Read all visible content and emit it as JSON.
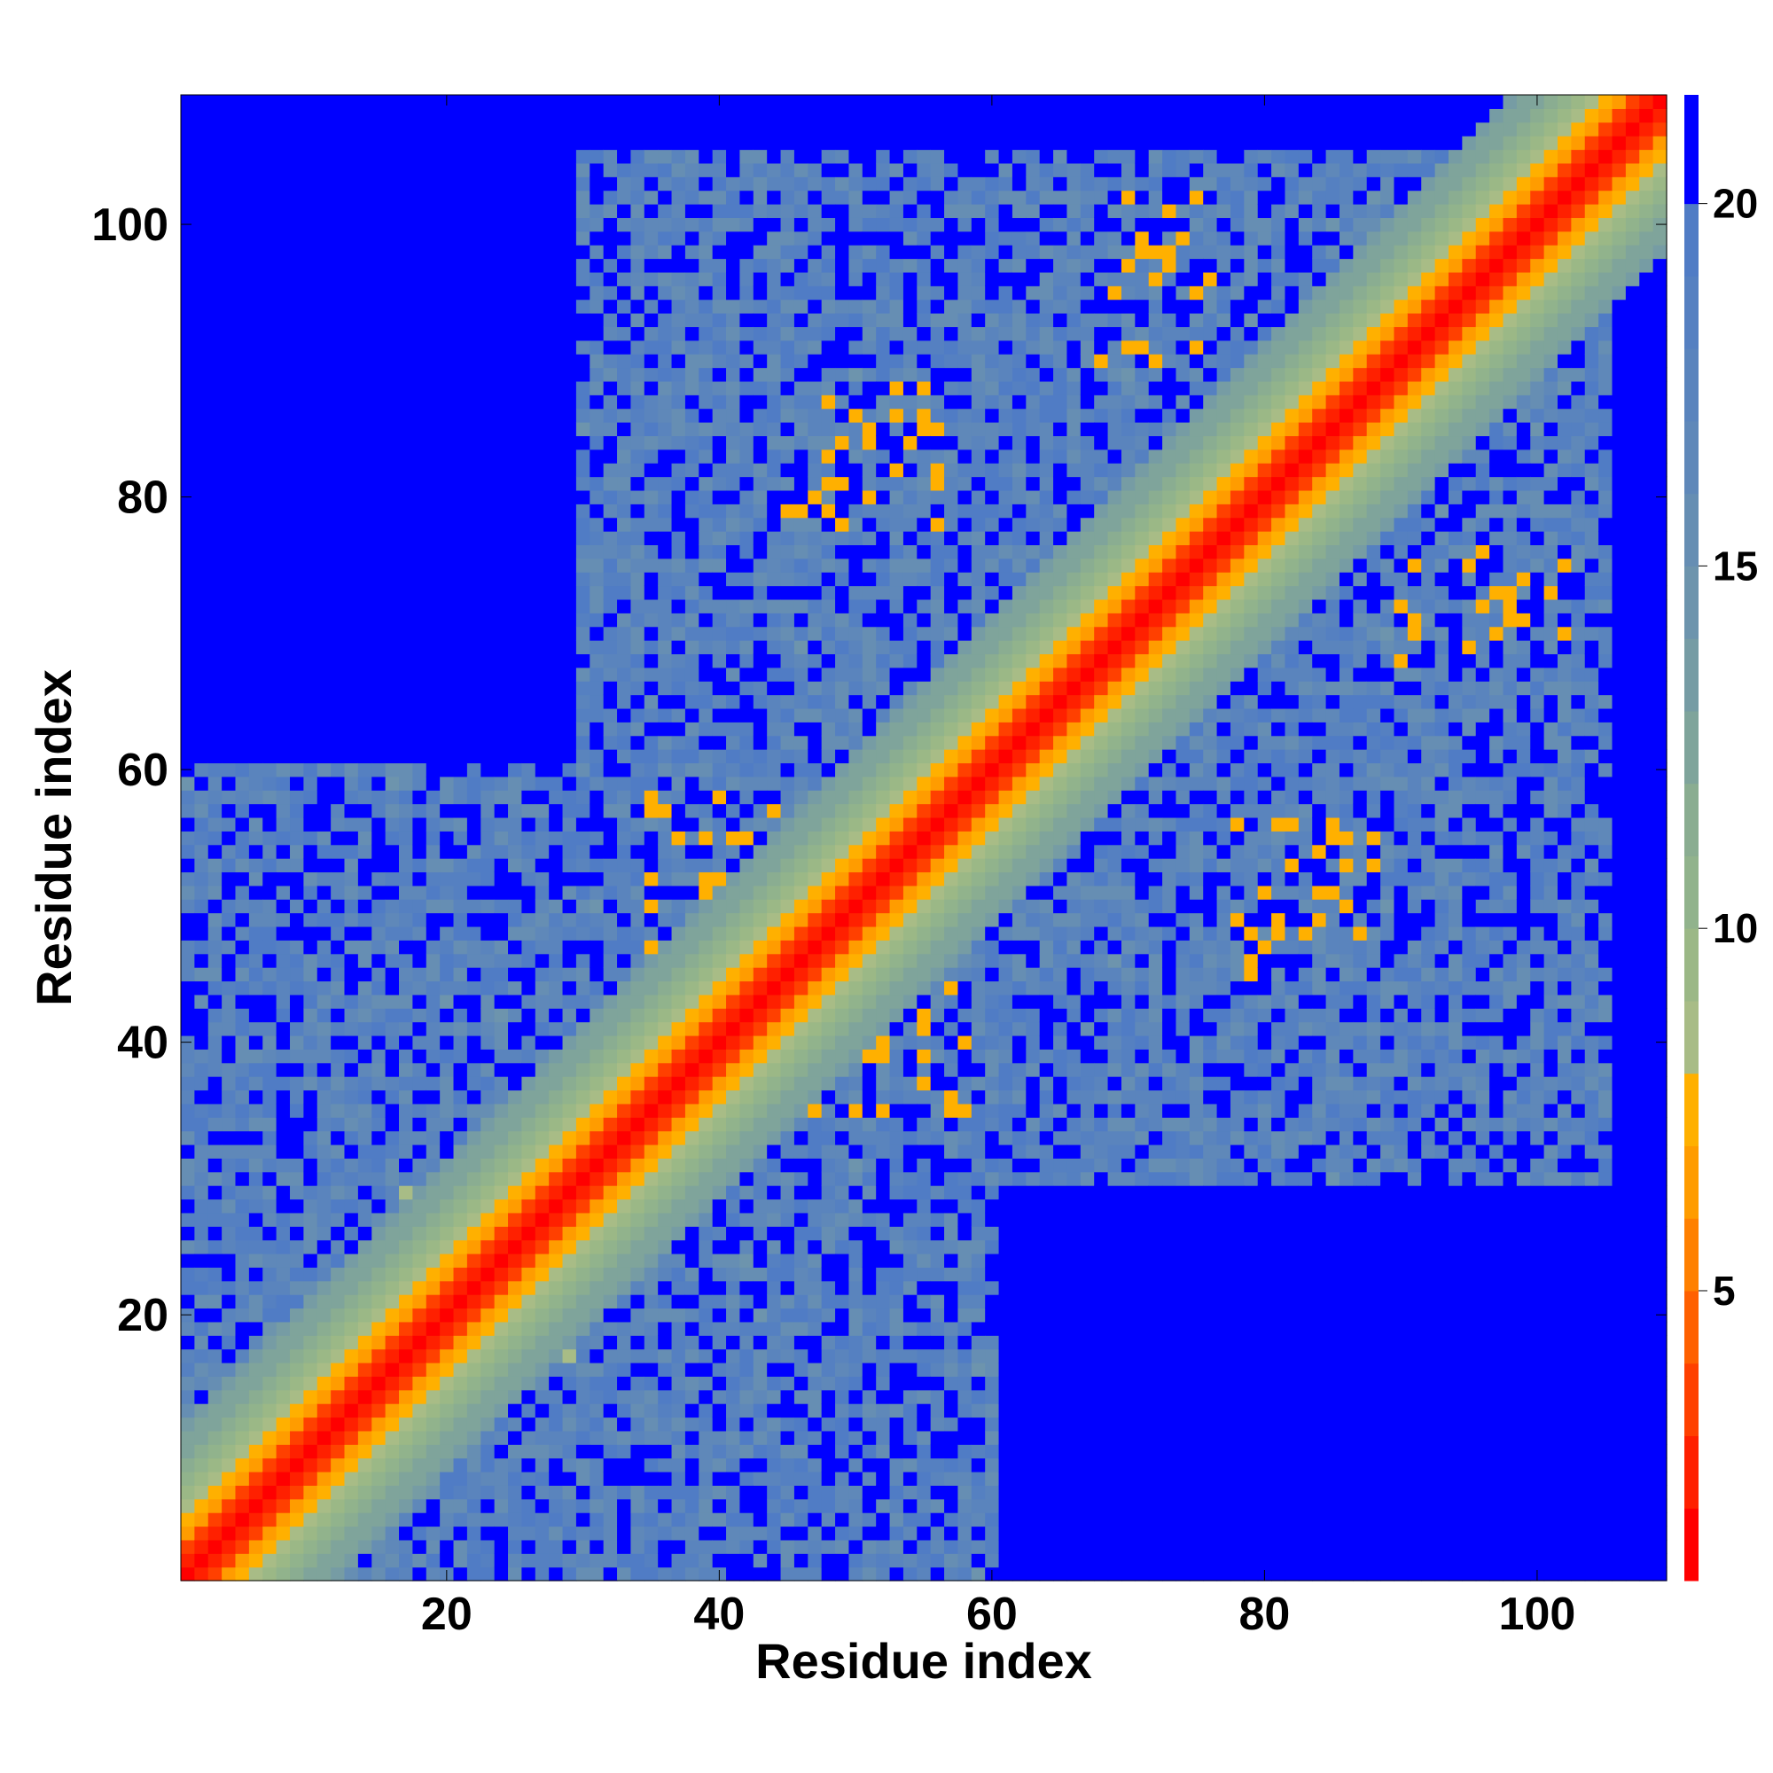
{
  "chart_data": {
    "type": "heatmap",
    "title": "",
    "xlabel": "Residue index",
    "ylabel": "Residue index",
    "xlim": [
      1,
      109
    ],
    "ylim": [
      1,
      109
    ],
    "n_residues": 109,
    "x_ticks": [
      20,
      40,
      60,
      80,
      100
    ],
    "y_ticks": [
      20,
      40,
      60,
      80,
      100
    ],
    "colorbar": {
      "range": [
        1,
        21.5
      ],
      "ticks": [
        5,
        10,
        15,
        20
      ],
      "levels": [
        {
          "max": 2,
          "color": "#ff0000"
        },
        {
          "max": 3,
          "color": "#ff2000"
        },
        {
          "max": 4,
          "color": "#ff4000"
        },
        {
          "max": 5,
          "color": "#ff6000"
        },
        {
          "max": 6,
          "color": "#ff8000"
        },
        {
          "max": 7,
          "color": "#ff9c00"
        },
        {
          "max": 8,
          "color": "#ffb000"
        },
        {
          "max": 9,
          "color": "#a8bc86"
        },
        {
          "max": 10,
          "color": "#9bb886"
        },
        {
          "max": 11,
          "color": "#91b38c"
        },
        {
          "max": 12,
          "color": "#8aad91"
        },
        {
          "max": 13,
          "color": "#7fa49b"
        },
        {
          "max": 14,
          "color": "#769ca4"
        },
        {
          "max": 15,
          "color": "#6d94ad"
        },
        {
          "max": 16,
          "color": "#668eb3"
        },
        {
          "max": 17,
          "color": "#5f88b9"
        },
        {
          "max": 18,
          "color": "#5a84bd"
        },
        {
          "max": 19,
          "color": "#5580c1"
        },
        {
          "max": 20,
          "color": "#507cc5"
        },
        {
          "max": 21.5,
          "color": "#0000ff"
        }
      ]
    },
    "distance_model": {
      "diagonal_slope": 1.0,
      "background_value": 21.5,
      "contact_clusters": [
        {
          "i": [
            35,
            45
          ],
          "j": [
            45,
            58
          ],
          "min": 6
        },
        {
          "i": [
            48,
            56
          ],
          "j": [
            78,
            88
          ],
          "min": 6
        },
        {
          "i": [
            68,
            75
          ],
          "j": [
            90,
            102
          ],
          "min": 6
        },
        {
          "i": [
            78,
            86
          ],
          "j": [
            45,
            55
          ],
          "min": 6
        },
        {
          "i": [
            90,
            100
          ],
          "j": [
            68,
            76
          ],
          "min": 6
        },
        {
          "i": [
            16,
            30
          ],
          "j": [
            18,
            30
          ],
          "min": 7
        },
        {
          "i": [
            45,
            55
          ],
          "j": [
            36,
            44
          ],
          "min": 6
        }
      ],
      "gray_regions": [
        {
          "i": [
            1,
            45
          ],
          "j": [
            1,
            60
          ]
        },
        {
          "i": [
            1,
            60
          ],
          "j": [
            1,
            45
          ]
        },
        {
          "i": [
            30,
            80
          ],
          "j": [
            60,
            105
          ]
        },
        {
          "i": [
            60,
            105
          ],
          "j": [
            30,
            80
          ]
        },
        {
          "i": [
            40,
            75
          ],
          "j": [
            40,
            75
          ]
        },
        {
          "i": [
            75,
            105
          ],
          "j": [
            75,
            105
          ]
        }
      ]
    }
  }
}
